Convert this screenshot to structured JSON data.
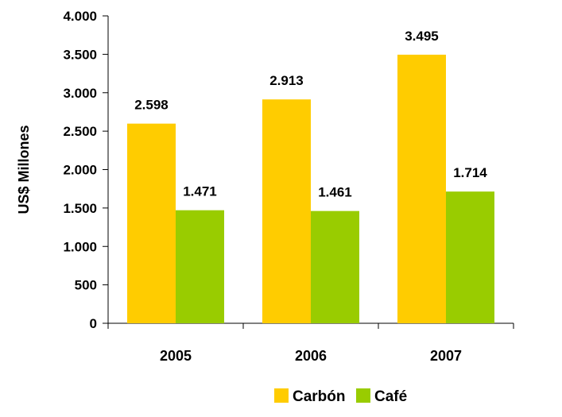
{
  "chart_data": {
    "type": "bar",
    "title": "",
    "xlabel": "",
    "ylabel": "US$ Millones",
    "categories": [
      "2005",
      "2006",
      "2007"
    ],
    "series": [
      {
        "name": "Carbón",
        "values": [
          2598,
          2913,
          3495
        ],
        "labels": [
          "2.598",
          "2.913",
          "3.495"
        ],
        "color": "#FFCC00"
      },
      {
        "name": "Café",
        "values": [
          1471,
          1461,
          1714
        ],
        "labels": [
          "1.471",
          "1.461",
          "1.714"
        ],
        "color": "#99CC00"
      }
    ],
    "ylim": [
      0,
      4000
    ],
    "yticks": [
      0,
      500,
      1000,
      1500,
      2000,
      2500,
      3000,
      3500,
      4000
    ],
    "ytick_labels": [
      "0",
      "500",
      "1.000",
      "1.500",
      "2.000",
      "2.500",
      "3.000",
      "3.500",
      "4.000"
    ],
    "grid": false,
    "legend_position": "bottom"
  }
}
